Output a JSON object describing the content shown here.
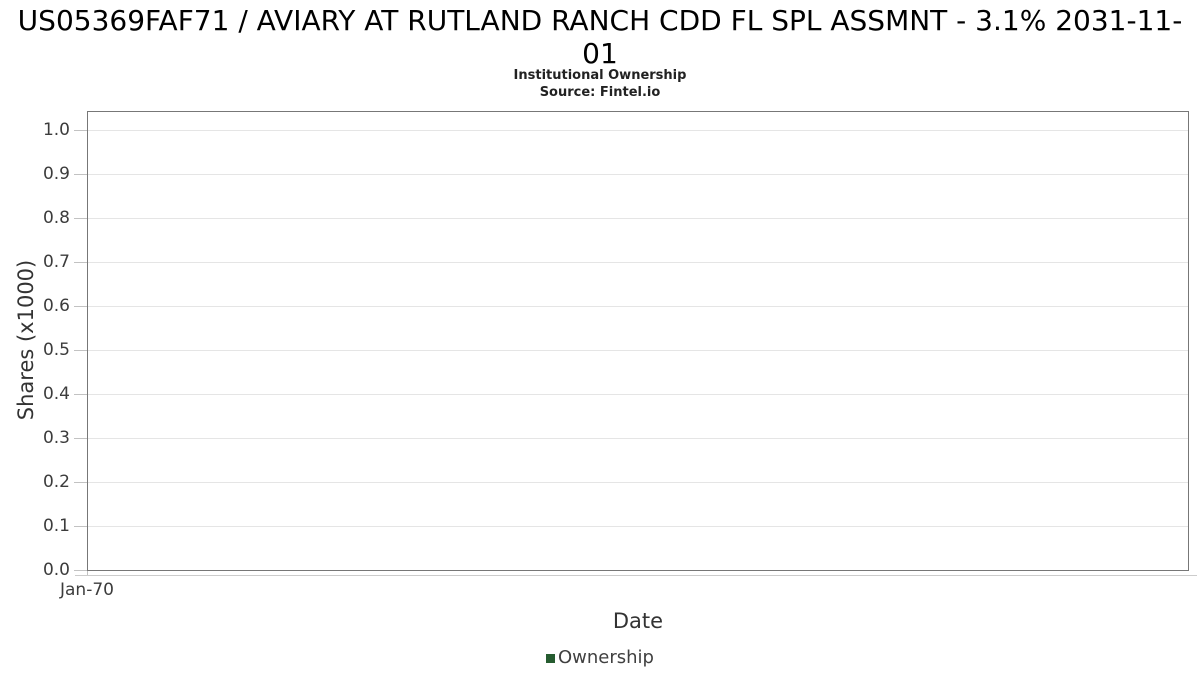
{
  "header": {
    "title_lines": [
      "US05369FAF71 / AVIARY AT RUTLAND RANCH CDD FL SPL ASSMNT - 3.1% 2031-11-",
      "01"
    ],
    "subtitle": "Institutional Ownership",
    "source": "Source: Fintel.io"
  },
  "legend": {
    "items": [
      {
        "label": "Ownership",
        "color": "#265c30"
      }
    ]
  },
  "chart_data": {
    "type": "line",
    "title": "US05369FAF71 / AVIARY AT RUTLAND RANCH CDD FL SPL ASSMNT - 3.1% 2031-11-01",
    "subtitle": "Institutional Ownership",
    "source": "Source: Fintel.io",
    "xlabel": "Date",
    "ylabel": "Shares (x1000)",
    "ylim": [
      0.0,
      1.04
    ],
    "y_tick_labels": [
      "0.0",
      "0.1",
      "0.2",
      "0.3",
      "0.4",
      "0.5",
      "0.6",
      "0.7",
      "0.8",
      "0.9",
      "1.0"
    ],
    "x_tick_labels": [
      "Jan-70"
    ],
    "grid": true,
    "legend_position": "bottom-center",
    "series": [
      {
        "name": "Ownership",
        "color": "#265c30",
        "x": [],
        "values": []
      }
    ],
    "colors": {
      "plot_border": "#777777",
      "gridline": "#e5e5e5",
      "tick": "#c2c2c2",
      "axis_baseline": "#cccccc",
      "tick_text": "#3c3c3c",
      "axis_title_text": "#333333"
    }
  }
}
